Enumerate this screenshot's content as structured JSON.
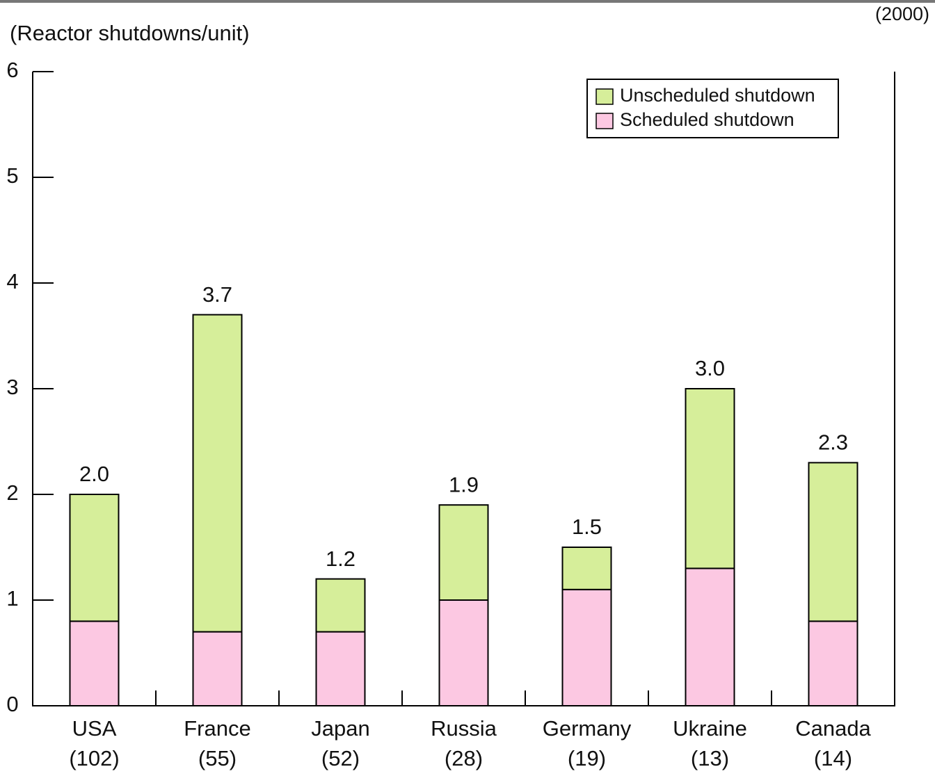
{
  "chart_data": {
    "type": "stacked_bar",
    "y_label": "(Reactor shutdowns/unit)",
    "note": "(2000)",
    "categories": [
      "USA",
      "France",
      "Japan",
      "Russia",
      "Germany",
      "Ukraine",
      "Canada"
    ],
    "category_sublabels": [
      "(102)",
      "(55)",
      "(52)",
      "(28)",
      "(19)",
      "(13)",
      "(14)"
    ],
    "series": [
      {
        "name": "Scheduled shutdown",
        "color": "#fcc8e2",
        "values": [
          0.8,
          0.7,
          0.7,
          1.0,
          1.1,
          1.3,
          0.8
        ]
      },
      {
        "name": "Unscheduled shutdown",
        "color": "#d6ee9a",
        "values": [
          1.2,
          3.0,
          0.5,
          0.9,
          0.4,
          1.7,
          1.5
        ]
      }
    ],
    "totals": [
      2.0,
      3.7,
      1.2,
      1.9,
      1.5,
      3.0,
      2.3
    ],
    "total_labels": [
      "2.0",
      "3.7",
      "1.2",
      "1.9",
      "1.5",
      "3.0",
      "2.3"
    ],
    "ylim": [
      0,
      6
    ],
    "yticks": [
      0,
      1,
      2,
      3,
      4,
      5,
      6
    ],
    "legend": "top-right"
  }
}
